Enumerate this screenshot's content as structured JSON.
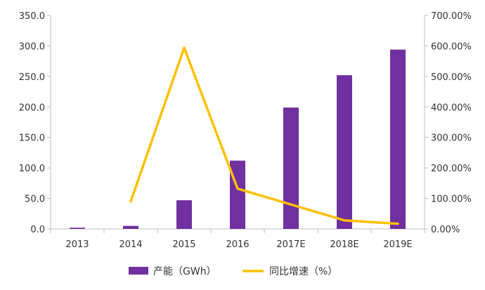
{
  "chart_data": {
    "type": "bar",
    "categories": [
      "2013",
      "2014",
      "2015",
      "2016",
      "2017E",
      "2018E",
      "2019E"
    ],
    "series": [
      {
        "name": "产能（GWh）",
        "type": "bar",
        "axis": "left",
        "color": "#7030A0",
        "values": [
          2,
          5,
          47,
          112,
          199,
          252,
          294
        ]
      },
      {
        "name": "同比增速（%）",
        "type": "line",
        "axis": "right",
        "color": "#FFC000",
        "values": [
          null,
          90,
          594,
          132,
          null,
          28,
          17
        ]
      }
    ],
    "y_left": {
      "range": [
        0,
        350
      ],
      "ticks": [
        "0.0",
        "50.0",
        "100.0",
        "150.0",
        "200.0",
        "250.0",
        "300.0",
        "350.0"
      ]
    },
    "y_right": {
      "range": [
        0,
        700
      ],
      "ticks": [
        "0.00%",
        "100.00%",
        "200.00%",
        "300.00%",
        "400.00%",
        "500.00%",
        "600.00%",
        "700.00%"
      ]
    },
    "legend": {
      "items": [
        "产能（GWh）",
        "同比增速（%）"
      ],
      "position": "bottom"
    }
  }
}
